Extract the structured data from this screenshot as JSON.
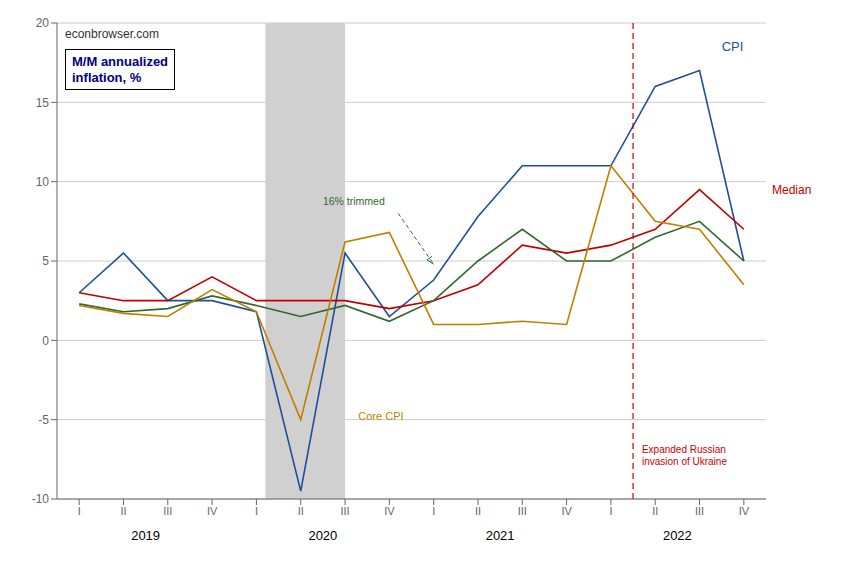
{
  "chart_data": {
    "type": "line",
    "categories": [
      "I",
      "II",
      "III",
      "IV",
      "I",
      "II",
      "III",
      "IV",
      "I",
      "II",
      "III",
      "IV",
      "I",
      "II",
      "III",
      "IV"
    ],
    "x_group_labels": [
      "2019",
      "2020",
      "2021",
      "2022"
    ],
    "series": [
      {
        "name": "CPI",
        "color": "#1f4e9b",
        "values": [
          3.0,
          5.5,
          2.5,
          2.5,
          1.8,
          -9.5,
          5.5,
          1.5,
          3.8,
          7.8,
          11.0,
          11.0,
          11.0,
          16.0,
          17.0,
          5.0
        ]
      },
      {
        "name": "Median",
        "color": "#c00000",
        "values": [
          3.0,
          2.5,
          2.5,
          4.0,
          2.5,
          2.5,
          2.5,
          2.0,
          2.5,
          3.5,
          6.0,
          5.5,
          6.0,
          7.0,
          9.5,
          7.0
        ]
      },
      {
        "name": "16% trimmed",
        "color": "#2d6a2d",
        "values": [
          2.3,
          1.8,
          2.0,
          2.8,
          2.2,
          1.5,
          2.2,
          1.2,
          2.5,
          5.0,
          7.0,
          5.0,
          5.0,
          6.5,
          7.5,
          5.0
        ]
      },
      {
        "name": "Core CPI",
        "color": "#c07f00",
        "values": [
          2.2,
          1.7,
          1.5,
          3.2,
          1.8,
          -5.0,
          6.2,
          6.8,
          1.0,
          1.0,
          1.2,
          1.0,
          11.0,
          7.5,
          7.0,
          3.5
        ]
      }
    ],
    "ylim": [
      -10,
      20
    ],
    "yticks": [
      -10,
      -5,
      0,
      5,
      10,
      15,
      20
    ],
    "grid": true,
    "recession": {
      "start": 4.2,
      "end": 6.0,
      "color": "#d0d0d0"
    },
    "vline": {
      "x": 12.5,
      "color": "#cc0000",
      "line_style": "dashed",
      "label": "Expanded Russian\ninvasion of Ukraine"
    },
    "annotations": [
      "econbrowser.com",
      "M/M annualized\ninflation, %"
    ]
  }
}
